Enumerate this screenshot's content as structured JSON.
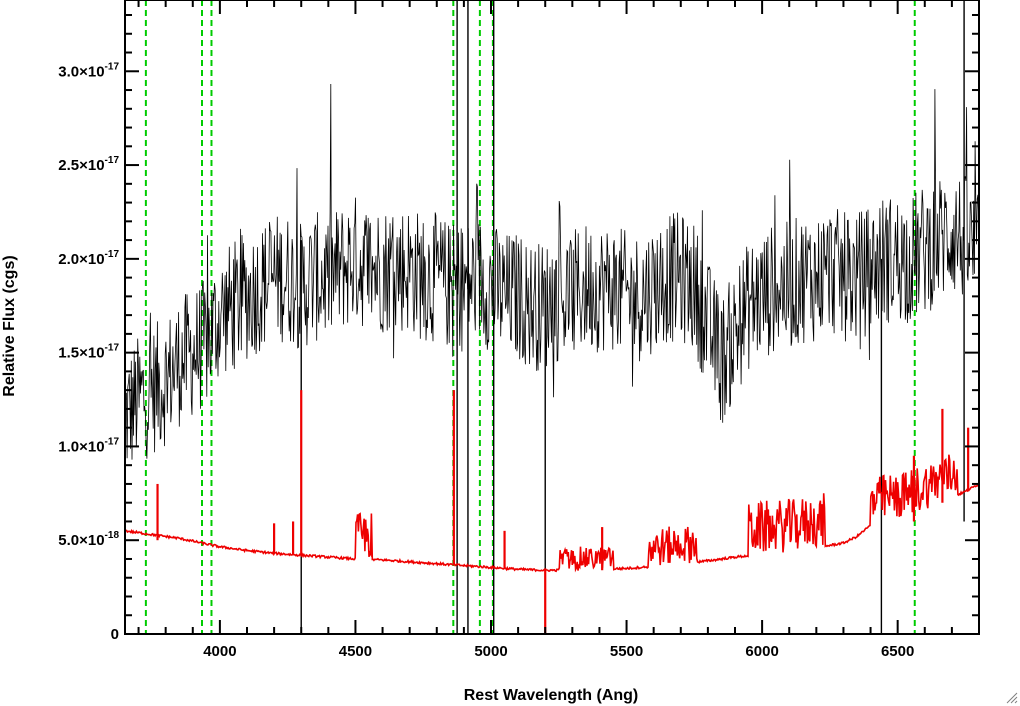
{
  "chart_data": {
    "type": "line",
    "xlabel": "Rest Wavelength (Ang)",
    "ylabel": "Relative Flux (cgs)",
    "xlim": [
      3650,
      6800
    ],
    "ylim": [
      0,
      3.38e-17
    ],
    "x_ticks": [
      {
        "value": 4000,
        "label": "4000"
      },
      {
        "value": 4500,
        "label": "4500"
      },
      {
        "value": 5000,
        "label": "5000"
      },
      {
        "value": 5500,
        "label": "5500"
      },
      {
        "value": 6000,
        "label": "6000"
      },
      {
        "value": 6500,
        "label": "6500"
      }
    ],
    "y_ticks": [
      {
        "value": 0,
        "mantissa": "0",
        "exponent": ""
      },
      {
        "value": 5e-18,
        "mantissa": "5.0×10",
        "exponent": "-18"
      },
      {
        "value": 1e-17,
        "mantissa": "1.0×10",
        "exponent": "-17"
      },
      {
        "value": 1.5e-17,
        "mantissa": "1.5×10",
        "exponent": "-17"
      },
      {
        "value": 2e-17,
        "mantissa": "2.0×10",
        "exponent": "-17"
      },
      {
        "value": 2.5e-17,
        "mantissa": "2.5×10",
        "exponent": "-17"
      },
      {
        "value": 3e-17,
        "mantissa": "3.0×10",
        "exponent": "-17"
      }
    ],
    "grid": false,
    "series": [
      {
        "role": "spectrum",
        "color": "#000000",
        "x": [
          3650,
          3700,
          3750,
          3800,
          3850,
          3900,
          3950,
          4000,
          4050,
          4100,
          4150,
          4200,
          4250,
          4300,
          4350,
          4400,
          4450,
          4500,
          4550,
          4600,
          4650,
          4700,
          4750,
          4800,
          4850,
          4900,
          4950,
          5000,
          5050,
          5100,
          5150,
          5200,
          5250,
          5300,
          5350,
          5400,
          5450,
          5500,
          5550,
          5600,
          5650,
          5700,
          5750,
          5800,
          5850,
          5900,
          5950,
          6000,
          6050,
          6100,
          6150,
          6200,
          6250,
          6300,
          6350,
          6400,
          6450,
          6500,
          6550,
          6600,
          6650,
          6700,
          6750,
          6800
        ],
        "y": [
          1.15e-17,
          1.25e-17,
          1.3e-17,
          1.35e-17,
          1.45e-17,
          1.5e-17,
          1.55e-17,
          1.7e-17,
          1.75e-17,
          1.8e-17,
          1.85e-17,
          1.9e-17,
          1.9e-17,
          1.85e-17,
          1.9e-17,
          1.9e-17,
          1.95e-17,
          2e-17,
          1.95e-17,
          1.95e-17,
          1.95e-17,
          1.95e-17,
          1.9e-17,
          1.9e-17,
          1.85e-17,
          1.85e-17,
          1.9e-17,
          1.85e-17,
          1.8e-17,
          1.8e-17,
          1.75e-17,
          1.75e-17,
          1.8e-17,
          1.8e-17,
          1.85e-17,
          1.85e-17,
          1.85e-17,
          1.8e-17,
          1.8e-17,
          1.85e-17,
          1.9e-17,
          1.9e-17,
          1.85e-17,
          1.65e-17,
          1.45e-17,
          1.6e-17,
          1.75e-17,
          1.8e-17,
          1.85e-17,
          1.85e-17,
          1.9e-17,
          1.9e-17,
          1.95e-17,
          1.9e-17,
          1.9e-17,
          1.95e-17,
          2e-17,
          2e-17,
          2e-17,
          2.05e-17,
          2.1e-17,
          2.15e-17,
          2.1e-17,
          2e-17
        ],
        "noise_amplitude": 3.5e-18,
        "spikes": [
          {
            "x": 4300,
            "low": 0,
            "high": 2.1e-17
          },
          {
            "x": 4875,
            "low": 0,
            "high": 3.4e-17
          },
          {
            "x": 4915,
            "low": 0,
            "high": 3.4e-17
          },
          {
            "x": 5010,
            "low": 0,
            "high": 3.4e-17
          },
          {
            "x": 5200,
            "low": 0,
            "high": 1.9e-17
          },
          {
            "x": 6440,
            "low": 0,
            "high": 2e-17
          },
          {
            "x": 6745,
            "low": 6e-18,
            "high": 3.4e-17
          }
        ]
      },
      {
        "role": "error",
        "color": "#ee0000",
        "x": [
          3650,
          3700,
          3750,
          3800,
          3850,
          3900,
          3950,
          4000,
          4100,
          4200,
          4300,
          4400,
          4500,
          4600,
          4700,
          4800,
          4900,
          5000,
          5100,
          5200,
          5300,
          5400,
          5500,
          5600,
          5700,
          5800,
          5900,
          6000,
          6100,
          6200,
          6300,
          6350,
          6400,
          6450,
          6500,
          6550,
          6600,
          6650,
          6700,
          6750,
          6800
        ],
        "y": [
          5.5e-18,
          5.4e-18,
          5.3e-18,
          5.2e-18,
          5.1e-18,
          4.95e-18,
          4.8e-18,
          4.65e-18,
          4.45e-18,
          4.3e-18,
          4.2e-18,
          4.1e-18,
          4e-18,
          3.95e-18,
          3.85e-18,
          3.75e-18,
          3.65e-18,
          3.55e-18,
          3.45e-18,
          3.4e-18,
          3.4e-18,
          3.45e-18,
          3.5e-18,
          3.6e-18,
          3.75e-18,
          3.9e-18,
          4.1e-18,
          4.25e-18,
          4.4e-18,
          4.6e-18,
          4.85e-18,
          5.2e-18,
          5.8e-18,
          6e-18,
          6.1e-18,
          6.3e-18,
          6.6e-18,
          7e-18,
          7.3e-18,
          7.6e-18,
          8e-18
        ],
        "noisy_ranges": [
          {
            "from": 4500,
            "to": 4560,
            "amp": 2.5e-18
          },
          {
            "from": 5250,
            "to": 5450,
            "amp": 1.2e-18
          },
          {
            "from": 5580,
            "to": 5760,
            "amp": 2e-18
          },
          {
            "from": 5950,
            "to": 6230,
            "amp": 2.8e-18
          },
          {
            "from": 6400,
            "to": 6720,
            "amp": 2.5e-18
          }
        ],
        "spikes": [
          {
            "x": 3770,
            "low": 5e-18,
            "high": 8e-18
          },
          {
            "x": 4200,
            "low": 4.3e-18,
            "high": 5.9e-18
          },
          {
            "x": 4270,
            "low": 4.2e-18,
            "high": 6e-18
          },
          {
            "x": 4300,
            "low": 4.2e-18,
            "high": 1.3e-17
          },
          {
            "x": 4863,
            "low": 3.7e-18,
            "high": 1.3e-17
          },
          {
            "x": 5050,
            "low": 3.5e-18,
            "high": 5.5e-18
          },
          {
            "x": 5200,
            "low": 0,
            "high": 3.5e-18
          },
          {
            "x": 5410,
            "low": 3.4e-18,
            "high": 5.7e-18
          },
          {
            "x": 6560,
            "low": 6e-18,
            "high": 9.5e-18
          },
          {
            "x": 6665,
            "low": 7e-18,
            "high": 1.2e-17
          },
          {
            "x": 6760,
            "low": 7.6e-18,
            "high": 1.1e-17
          }
        ]
      }
    ],
    "reference_lines": {
      "color": "#00cc00",
      "style": "dashed",
      "x": [
        3727,
        3934,
        3969,
        4861,
        4959,
        5007,
        6563
      ]
    }
  }
}
